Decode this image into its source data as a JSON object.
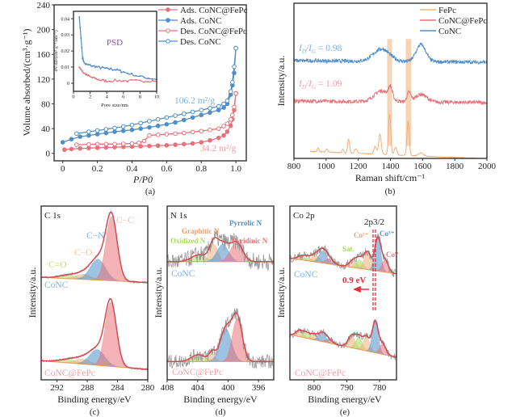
{
  "colors": {
    "red": "#e8727a",
    "blue": "#4f8fc8",
    "orange": "#f0b07a",
    "green": "#a6dc58",
    "gray": "#9a9a9a",
    "ann_blue": "#7fb2dc",
    "ann_pink": "#f0a0a8",
    "purple": "#8a4fa8"
  },
  "chart_data": [
    {
      "id": "a",
      "type": "line",
      "caption": "(a)",
      "xlabel": "P/P0",
      "ylabel": "Volume absorbed/(cm³·g⁻¹)",
      "xlim": [
        -0.05,
        1.06
      ],
      "ylim": [
        -12,
        240
      ],
      "xticks": [
        0,
        0.2,
        0.4,
        0.6,
        0.8,
        1.0
      ],
      "xtick_labels": [
        "0",
        "0.2",
        "0.4",
        "0.6",
        "0.8",
        "1.0"
      ],
      "yticks": [
        0,
        40,
        80,
        120,
        160,
        200,
        240
      ],
      "ytick_labels": [
        "0",
        "40",
        "80",
        "120",
        "160",
        "200",
        "240"
      ],
      "legend_position": "top-right",
      "annotations": [
        {
          "text": "106.2 m²/g",
          "color": "blue"
        },
        {
          "text": "34.2 m²/g",
          "color": "red"
        }
      ],
      "series": [
        {
          "name": "Ads. CoNC@FePc",
          "color": "red",
          "marker": "filled",
          "x": [
            0.01,
            0.05,
            0.1,
            0.15,
            0.2,
            0.25,
            0.3,
            0.35,
            0.4,
            0.45,
            0.5,
            0.55,
            0.6,
            0.65,
            0.7,
            0.75,
            0.8,
            0.85,
            0.9,
            0.93,
            0.95,
            0.97,
            0.98,
            0.99,
            1.0
          ],
          "y": [
            6,
            7,
            8,
            8.5,
            9,
            9.5,
            10,
            10.5,
            11,
            11.5,
            12,
            12.5,
            13,
            14,
            15,
            16,
            18,
            21,
            25,
            29,
            35,
            45,
            55,
            70,
            97
          ]
        },
        {
          "name": "Ads. CoNC",
          "color": "blue",
          "marker": "filled",
          "x": [
            0.0,
            0.05,
            0.1,
            0.15,
            0.2,
            0.25,
            0.3,
            0.35,
            0.4,
            0.45,
            0.5,
            0.55,
            0.6,
            0.65,
            0.7,
            0.75,
            0.8,
            0.85,
            0.9,
            0.93,
            0.95,
            0.97,
            0.98,
            0.99,
            1.0
          ],
          "y": [
            18,
            23,
            27,
            29,
            31,
            33,
            35,
            36.5,
            38,
            40,
            42,
            44.5,
            47,
            50,
            54,
            58,
            62,
            66,
            70,
            74,
            80,
            95,
            110,
            130,
            170
          ]
        },
        {
          "name": "Des. CoNC@FePc",
          "color": "red",
          "marker": "open",
          "x": [
            0.08,
            0.15,
            0.2,
            0.25,
            0.3,
            0.35,
            0.4,
            0.44,
            0.47,
            0.5,
            0.55,
            0.6,
            0.65,
            0.7,
            0.75,
            0.8,
            0.85,
            0.9,
            0.93,
            0.95,
            0.97,
            0.98,
            0.99,
            1.0
          ],
          "y": [
            14,
            14.5,
            15,
            15,
            15,
            15.5,
            16,
            17,
            20,
            29,
            30,
            31,
            32,
            33,
            34.5,
            36,
            38,
            40,
            44,
            48,
            55,
            62,
            75,
            97
          ]
        },
        {
          "name": "Des. CoNC",
          "color": "blue",
          "marker": "open",
          "x": [
            0.08,
            0.15,
            0.2,
            0.25,
            0.3,
            0.35,
            0.4,
            0.45,
            0.5,
            0.55,
            0.6,
            0.65,
            0.7,
            0.75,
            0.8,
            0.85,
            0.9,
            0.93,
            0.95,
            0.97,
            0.98,
            0.99,
            1.0
          ],
          "y": [
            32,
            35,
            37,
            39,
            41,
            43.5,
            46,
            49,
            52,
            55,
            58,
            61,
            64,
            67,
            70,
            73,
            76,
            80,
            85,
            100,
            115,
            140,
            170
          ]
        }
      ],
      "inset": {
        "title": "PSD",
        "xlabel": "Pore size/nm",
        "ylabel": "dV/dD/(cm³·g⁻¹·nm⁻¹)",
        "xlim": [
          0,
          10
        ],
        "ylim": [
          -0.005,
          0.0446
        ],
        "xticks": [
          0,
          2,
          4,
          6,
          8,
          10
        ],
        "xtick_labels": [
          "0",
          "2",
          "4",
          "6",
          "8",
          "10"
        ],
        "yticks": [
          0,
          0.01,
          0.02,
          0.03,
          0.04
        ],
        "ytick_labels": [
          "0",
          "0.01",
          "0.02",
          "0.03",
          "0.04"
        ],
        "series": [
          {
            "color": "blue",
            "x": [
              0.7,
              0.9,
              1.1,
              1.3,
              1.6,
              2,
              2.5,
              3,
              3.5,
              4,
              4.5,
              5,
              5.5,
              6,
              7,
              8,
              9,
              10
            ],
            "y": [
              0.041,
              0.028,
              0.016,
              0.0125,
              0.0115,
              0.011,
              0.0105,
              0.0098,
              0.0095,
              0.009,
              0.0088,
              0.0085,
              0.0078,
              0.007,
              0.0055,
              0.0042,
              0.0032,
              0.0025
            ]
          },
          {
            "color": "red",
            "x": [
              0.7,
              0.9,
              1.2,
              1.6,
              2,
              2.5,
              3,
              3.5,
              4,
              5,
              6,
              7,
              8,
              9,
              10
            ],
            "y": [
              0.01,
              0.0085,
              0.0065,
              0.005,
              0.004,
              0.003,
              0.0022,
              0.0018,
              0.0015,
              0.0016,
              0.0015,
              0.0015,
              0.0014,
              0.0015,
              0.0015
            ]
          }
        ]
      }
    },
    {
      "id": "b",
      "type": "line",
      "caption": "(b)",
      "xlabel": "Raman shift/cm⁻¹",
      "ylabel": "Intensity/a.u.",
      "xlim": [
        800,
        2000
      ],
      "ylim": [
        0,
        1
      ],
      "xticks": [
        800,
        1000,
        1200,
        1400,
        1600,
        1800,
        2000
      ],
      "xtick_labels": [
        "800",
        "1000",
        "1200",
        "1400",
        "1600",
        "1800",
        "2000"
      ],
      "legend_position": "top-right",
      "highlight_bands": [
        [
          1380,
          1410
        ],
        [
          1495,
          1530
        ]
      ],
      "series": [
        {
          "name": "FePc",
          "color": "orange",
          "range": [
            900,
            1950
          ],
          "baseline": [
            0.045,
            0.0
          ],
          "noise": 0.002,
          "peaks": [
            [
              950,
              0.025,
              5
            ],
            [
              1005,
              0.02,
              6
            ],
            [
              1105,
              0.025,
              5
            ],
            [
              1140,
              0.09,
              6
            ],
            [
              1185,
              0.03,
              8
            ],
            [
              1305,
              0.05,
              8
            ],
            [
              1335,
              0.13,
              8
            ],
            [
              1395,
              0.26,
              7
            ],
            [
              1432,
              0.05,
              8
            ],
            [
              1510,
              0.22,
              7
            ],
            [
              1590,
              0.02,
              15
            ]
          ]
        },
        {
          "name": "CoNC@FePc",
          "color": "red",
          "range": [
            800,
            2000
          ],
          "baseline": [
            0.37,
            0.36
          ],
          "noise": 0.012,
          "ratio": "1.09",
          "peaks": [
            [
              1345,
              0.07,
              45
            ],
            [
              1400,
              0.07,
              12
            ],
            [
              1515,
              0.06,
              12
            ],
            [
              1590,
              0.05,
              35
            ]
          ]
        },
        {
          "name": "CoNC",
          "color": "blue",
          "range": [
            800,
            2000
          ],
          "baseline": [
            0.63,
            0.62
          ],
          "noise": 0.012,
          "ratio": "0.98",
          "peaks": [
            [
              1345,
              0.08,
              50
            ],
            [
              1590,
              0.11,
              30
            ]
          ]
        }
      ]
    },
    {
      "id": "c",
      "type": "line",
      "caption": "(c)",
      "title": "C 1s",
      "xlabel": "Binding energy/eV",
      "ylabel": "Intensity/a.u.",
      "xlim": [
        294.1,
        280
      ],
      "ylim": [
        0,
        1
      ],
      "xticks": [
        292,
        288,
        284,
        280
      ],
      "xtick_labels": [
        "292",
        "288",
        "284",
        "280"
      ],
      "component_labels": [
        "C−C",
        "C−N",
        "C−O",
        "C=O"
      ],
      "spectra": [
        {
          "name": "CoNC",
          "baseline": [
            0.59,
            0.56
          ],
          "noise": 0.006,
          "components": [
            {
              "label": "C=O",
              "color": "green",
              "c": 290.5,
              "h": 0.02,
              "s": 1.2
            },
            {
              "label": "C−O",
              "color": "orange",
              "c": 288.5,
              "h": 0.03,
              "s": 1.0
            },
            {
              "label": "C−N",
              "color": "blue",
              "c": 286.6,
              "h": 0.12,
              "s": 1.0
            },
            {
              "label": "C−C",
              "color": "red",
              "c": 284.8,
              "h": 0.37,
              "s": 0.75
            }
          ]
        },
        {
          "name": "CoNC@FePc",
          "baseline": [
            0.11,
            0.06
          ],
          "noise": 0.006,
          "components": [
            {
              "label": "C=O",
              "color": "green",
              "c": 290.5,
              "h": 0.02,
              "s": 1.2
            },
            {
              "label": "C−O",
              "color": "orange",
              "c": 288.6,
              "h": 0.03,
              "s": 1.0
            },
            {
              "label": "C−N",
              "color": "blue",
              "c": 286.7,
              "h": 0.09,
              "s": 1.0
            },
            {
              "label": "C−C",
              "color": "red",
              "c": 284.9,
              "h": 0.37,
              "s": 0.75
            }
          ]
        }
      ]
    },
    {
      "id": "d",
      "type": "line",
      "caption": "(d)",
      "title": "N 1s",
      "xlabel": "Binding energy/eV",
      "ylabel": "Intensity/a.u.",
      "xlim": [
        408,
        394
      ],
      "ylim": [
        0,
        1
      ],
      "xticks": [
        408,
        404,
        400,
        396
      ],
      "xtick_labels": [
        "408",
        "404",
        "400",
        "396"
      ],
      "component_labels": [
        "Oxidized N",
        "Graphitic N",
        "Pyrrolic N",
        "Pyridinic N"
      ],
      "spectra": [
        {
          "name": "CoNC",
          "baseline": [
            0.68,
            0.68
          ],
          "noise": 0.05,
          "components": [
            {
              "label": "Oxidized N",
              "color": "green",
              "c": 403.8,
              "h": 0.04,
              "s": 1.0
            },
            {
              "label": "Graphitic N",
              "color": "orange",
              "c": 401.9,
              "h": 0.1,
              "s": 0.55
            },
            {
              "label": "Pyrrolic N",
              "color": "blue",
              "c": 400.7,
              "h": 0.1,
              "s": 0.75
            },
            {
              "label": "Pyridinic N",
              "color": "red",
              "c": 398.9,
              "h": 0.11,
              "s": 0.8
            }
          ]
        },
        {
          "name": "CoNC@FePc",
          "baseline": [
            0.105,
            0.105
          ],
          "noise": 0.04,
          "components": [
            {
              "label": "Oxidized N",
              "color": "green",
              "c": 403.9,
              "h": 0.04,
              "s": 0.9
            },
            {
              "label": "Graphitic N",
              "color": "orange",
              "c": 402.1,
              "h": 0.05,
              "s": 0.4
            },
            {
              "label": "Pyrrolic N",
              "color": "blue",
              "c": 400.3,
              "h": 0.19,
              "s": 0.75
            },
            {
              "label": "Pyridinic N",
              "color": "red",
              "c": 398.8,
              "h": 0.25,
              "s": 0.65
            }
          ]
        }
      ]
    },
    {
      "id": "e",
      "type": "line",
      "caption": "(e)",
      "title": "Co 2p",
      "xlabel": "Binding energy/eV",
      "ylabel": "Intensity/a.u.",
      "xlim": [
        807.4,
        774.8
      ],
      "ylim": [
        0,
        1
      ],
      "xticks": [
        800,
        790,
        780
      ],
      "xtick_labels": [
        "800",
        "790",
        "780"
      ],
      "peak_label": "2p3/2",
      "shift_label": "0.9 eV",
      "component_labels": [
        "Sat.",
        "Co²⁺",
        "Co³⁺",
        "Co⁰"
      ],
      "spectra": [
        {
          "name": "CoNC",
          "baseline": [
            0.7,
            0.61
          ],
          "noise": 0.025,
          "components": [
            {
              "color": "orange",
              "c": 804,
              "h": 0.02,
              "s": 1.2
            },
            {
              "color": "green",
              "c": 802,
              "h": 0.02,
              "s": 1.2
            },
            {
              "color": "orange",
              "c": 799.5,
              "h": 0.04,
              "s": 1.2
            },
            {
              "color": "blue",
              "c": 797.3,
              "h": 0.07,
              "s": 1.2
            },
            {
              "color": "red",
              "c": 795.3,
              "h": 0.03,
              "s": 1.2
            },
            {
              "color": "orange",
              "c": 788,
              "h": 0.04,
              "s": 1.2
            },
            {
              "label": "Sat.",
              "color": "green",
              "c": 786,
              "h": 0.05,
              "s": 1.1
            },
            {
              "label": "Co²⁺",
              "color": "orange",
              "c": 783.6,
              "h": 0.1,
              "s": 1.1
            },
            {
              "label": "Co³⁺",
              "color": "blue",
              "c": 780.5,
              "h": 0.19,
              "s": 0.9
            },
            {
              "label": "Co⁰",
              "color": "red",
              "c": 778.3,
              "h": 0.07,
              "s": 1.0
            }
          ]
        },
        {
          "name": "CoNC@FePc",
          "baseline": [
            0.26,
            0.13
          ],
          "noise": 0.02,
          "components": [
            {
              "color": "orange",
              "c": 804.5,
              "h": 0.035,
              "s": 1.1
            },
            {
              "color": "green",
              "c": 802.3,
              "h": 0.03,
              "s": 1.0
            },
            {
              "color": "orange",
              "c": 800,
              "h": 0.03,
              "s": 1.0
            },
            {
              "color": "blue",
              "c": 797.5,
              "h": 0.05,
              "s": 1.1
            },
            {
              "color": "red",
              "c": 795.5,
              "h": 0.02,
              "s": 1.1
            },
            {
              "color": "orange",
              "c": 788.5,
              "h": 0.07,
              "s": 1.1
            },
            {
              "color": "green",
              "c": 786.3,
              "h": 0.07,
              "s": 1.0
            },
            {
              "color": "orange",
              "c": 784,
              "h": 0.08,
              "s": 1.0
            },
            {
              "color": "blue",
              "c": 781.3,
              "h": 0.18,
              "s": 0.9
            },
            {
              "color": "red",
              "c": 779,
              "h": 0.06,
              "s": 1.0
            }
          ]
        }
      ]
    }
  ]
}
